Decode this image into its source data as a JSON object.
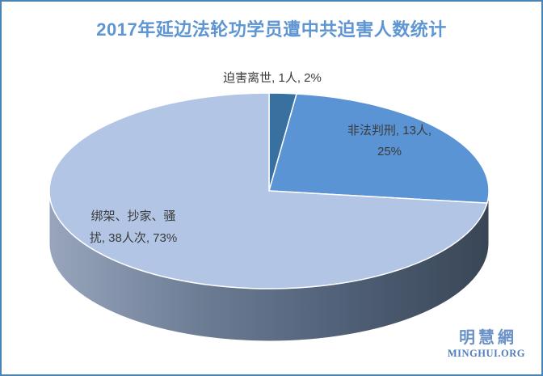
{
  "page": {
    "border_color": "#4A84B5",
    "background_color": "#FFFFFF"
  },
  "chart_data": {
    "type": "pie",
    "is_3d": true,
    "title": "2017年延边法轮功学员遭中共迫害人数统计",
    "title_color": "#5E95D2",
    "legend": "none",
    "direction": "clockwise",
    "start_angle_deg": 0,
    "label_color": "#3B3B3B",
    "slices": [
      {
        "label": "迫害离世",
        "count_text": "1人",
        "percent": 2,
        "color": "#38719F",
        "data_label": "迫害离世, 1人, 2%"
      },
      {
        "label": "非法判刑",
        "count_text": "13人",
        "percent": 25,
        "color": "#5B94D4",
        "data_label": "非法判刑, 13人, 25%"
      },
      {
        "label": "绑架、抄家、骚扰",
        "count_text": "38人次",
        "percent": 73,
        "color": "#B2C5E5",
        "data_label": "绑架、抄家、骚扰, 38人次, 73%"
      }
    ]
  },
  "labels": {
    "death": "迫害离世, 1人, 2%",
    "sentenced_line1": "非法判刑, 13人,",
    "sentenced_line2": "25%",
    "harassed_line1": "绑架、抄家、骚",
    "harassed_line2": "扰, 38人次, 73%"
  },
  "watermark": {
    "cjk": "明慧網",
    "latin": "MINGHUI.ORG",
    "cjk_color": "#6B92C8",
    "latin_color": "#517EBE"
  }
}
